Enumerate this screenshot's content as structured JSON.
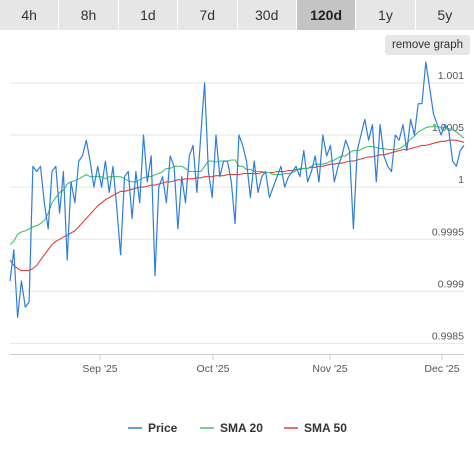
{
  "tabs": [
    "4h",
    "8h",
    "1d",
    "7d",
    "30d",
    "120d",
    "1y",
    "5y"
  ],
  "active_tab": "120d",
  "remove_graph_label": "remove graph",
  "colors": {
    "price": "#2f7ed8",
    "sma20": "#3cc46a",
    "sma50": "#e0403a",
    "grid": "#e6e6e6",
    "axis_text": "#555555"
  },
  "chart_data": {
    "type": "line",
    "title": "",
    "xlabel": "",
    "ylabel": "",
    "x_tick_labels": [
      "Sep '25",
      "Oct '25",
      "Nov '25",
      "Dec '25"
    ],
    "y_tick_labels": [
      "0.9985",
      "0.999",
      "0.9995",
      "1",
      "1.0005",
      "1.001"
    ],
    "y_ticks": [
      0.9985,
      0.999,
      0.9995,
      1,
      1.0005,
      1.001
    ],
    "ylim": [
      0.9984,
      1.0012
    ],
    "xlim": [
      0,
      120
    ],
    "legend": [
      "Price",
      "SMA 20",
      "SMA 50"
    ],
    "legend_position": "bottom",
    "grid": true,
    "series": [
      {
        "name": "Price",
        "values": [
          0.9991,
          0.9994,
          0.99875,
          0.9991,
          0.99885,
          0.9989,
          1.0002,
          1.00015,
          1.0002,
          0.99985,
          0.9996,
          1.00015,
          1.0002,
          0.99975,
          1.00015,
          0.9993,
          1.00005,
          0.99985,
          1.00025,
          1.0003,
          1.00045,
          1.00025,
          1.0,
          1.0002,
          1.0,
          1.00025,
          0.99995,
          1.0002,
          0.9998,
          0.99935,
          1.0001,
          1.00015,
          0.9997,
          1.00015,
          0.99985,
          1.0005,
          1.00005,
          1.0003,
          0.99915,
          1.0,
          1.0001,
          0.99985,
          1.0003,
          1.0002,
          0.9996,
          1.0001,
          0.99985,
          1.0003,
          1.0004,
          0.99995,
          1.0005,
          1.001,
          1.00015,
          0.9999,
          1.0005,
          1.0001,
          1.00025,
          1.00025,
          1.00005,
          0.99965,
          1.0005,
          1.0004,
          1.00025,
          0.9999,
          1.00025,
          0.99995,
          1.0001,
          1.00015,
          0.9999,
          1.0,
          1.0001,
          1.0002,
          1.0,
          1.0001,
          1.00015,
          1.0002,
          1.0001,
          1.00035,
          1.00005,
          1.00015,
          1.0003,
          1.00005,
          1.0005,
          1.0003,
          1.0004,
          1.00005,
          1.0002,
          1.0003,
          1.00045,
          1.00035,
          0.9996,
          1.00035,
          1.0005,
          1.00065,
          1.00045,
          1.0006,
          1.00005,
          1.0006,
          1.0003,
          1.0002,
          1.00015,
          1.0005,
          1.00045,
          1.0006,
          1.00035,
          1.00065,
          1.0005,
          1.0008,
          1.0008,
          1.0012,
          1.00095,
          1.0007,
          1.0006,
          1.0005,
          1.0006,
          1.00055,
          1.00025,
          1.0002,
          1.00035,
          1.0004
        ]
      },
      {
        "name": "SMA 20",
        "values": [
          0.99945,
          0.99948,
          0.99955,
          0.99957,
          0.99958,
          0.9996,
          0.99962,
          0.99963,
          0.99965,
          0.99968,
          0.99975,
          0.99985,
          0.9999,
          0.99995,
          0.99997,
          1.00003,
          1.00005,
          1.00006,
          1.00008,
          1.0001,
          1.00012,
          1.0001,
          1.0001,
          1.0001,
          1.0001,
          1.00008,
          1.0001,
          1.0001,
          1.0001,
          1.0001,
          1.00008,
          1.00006,
          1.00005,
          1.00005,
          1.00007,
          1.00009,
          1.0001,
          1.0001,
          1.00012,
          1.00013,
          1.00015,
          1.00018,
          1.00018,
          1.0002,
          1.0002,
          1.0002,
          1.00018,
          1.00015,
          1.00015,
          1.00015,
          1.00015,
          1.0002,
          1.00025,
          1.00025,
          1.00024,
          1.00025,
          1.00025,
          1.00025,
          1.00026,
          1.00026,
          1.0002,
          1.0002,
          1.00017,
          1.00017,
          1.00015,
          1.00015,
          1.00015,
          1.00014,
          1.00014,
          1.00012,
          1.00012,
          1.00012,
          1.00013,
          1.00013,
          1.00014,
          1.00016,
          1.00018,
          1.00018,
          1.00018,
          1.0002,
          1.00022,
          1.00022,
          1.00022,
          1.00023,
          1.00025,
          1.00026,
          1.00028,
          1.0003,
          1.0003,
          1.00033,
          1.00035,
          1.00035,
          1.00036,
          1.00038,
          1.00039,
          1.00039,
          1.00038,
          1.00037,
          1.00037,
          1.00036,
          1.00036,
          1.00036,
          1.00037,
          1.00039,
          1.00042,
          1.00046,
          1.00049,
          1.00053,
          1.00055,
          1.00057,
          1.00058,
          1.00058,
          1.00058,
          1.00057,
          1.00057,
          1.00056,
          1.00055,
          1.00053,
          1.0005,
          1.00047
        ]
      },
      {
        "name": "SMA 50",
        "values": [
          0.9993,
          0.99925,
          0.99922,
          0.9992,
          0.9992,
          0.9992,
          0.99922,
          0.99925,
          0.9993,
          0.99935,
          0.9994,
          0.99945,
          0.99948,
          0.9995,
          0.99952,
          0.99954,
          0.99956,
          0.99958,
          0.99962,
          0.99966,
          0.9997,
          0.99974,
          0.99978,
          0.99982,
          0.99985,
          0.99988,
          0.9999,
          0.99992,
          0.99994,
          0.99996,
          0.99996,
          0.99997,
          0.99998,
          0.99999,
          1.0,
          1.0,
          1.00001,
          1.00002,
          1.00002,
          1.00003,
          1.00004,
          1.00005,
          1.00005,
          1.00006,
          1.00007,
          1.00007,
          1.00008,
          1.00008,
          1.00008,
          1.00009,
          1.00009,
          1.0001,
          1.0001,
          1.0001,
          1.00011,
          1.00011,
          1.00011,
          1.00012,
          1.00012,
          1.00012,
          1.00012,
          1.00013,
          1.00013,
          1.00013,
          1.00013,
          1.00013,
          1.00014,
          1.00014,
          1.00014,
          1.00014,
          1.00015,
          1.00015,
          1.00015,
          1.00016,
          1.00016,
          1.00017,
          1.00017,
          1.00018,
          1.00018,
          1.00019,
          1.00019,
          1.0002,
          1.0002,
          1.00021,
          1.00022,
          1.00022,
          1.00023,
          1.00023,
          1.00024,
          1.00025,
          1.00025,
          1.00026,
          1.00027,
          1.00028,
          1.00029,
          1.00029,
          1.0003,
          1.00031,
          1.00031,
          1.00032,
          1.00033,
          1.00034,
          1.00035,
          1.00036,
          1.00036,
          1.00037,
          1.00038,
          1.00039,
          1.0004,
          1.0004,
          1.00041,
          1.00042,
          1.00043,
          1.00044,
          1.00044,
          1.00045,
          1.00045,
          1.00045,
          1.00044,
          1.00043
        ]
      }
    ]
  }
}
